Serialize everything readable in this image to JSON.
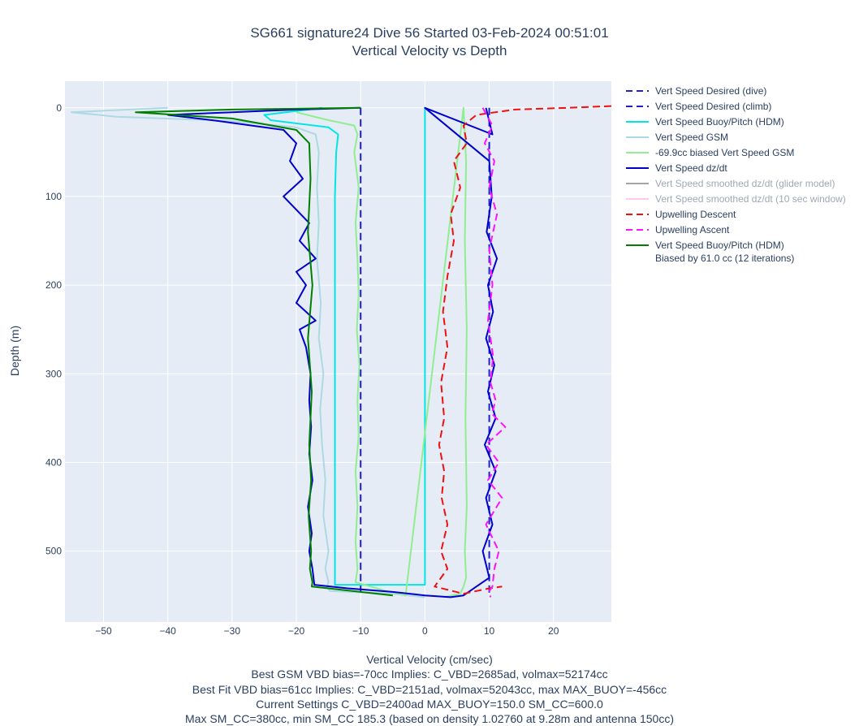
{
  "chart_data": {
    "type": "line",
    "title": "SG661 signature24 Dive 56 Started 03-Feb-2024 00:51:01",
    "subtitle": "Vertical Velocity vs Depth",
    "xlabel": "Vertical Velocity (cm/sec)",
    "ylabel": "Depth (m)",
    "xlim": [
      -56,
      29
    ],
    "ylim": [
      -30,
      580
    ],
    "y_reversed": true,
    "xticks": [
      -50,
      -40,
      -30,
      -20,
      -10,
      0,
      10,
      20
    ],
    "yticks": [
      0,
      100,
      200,
      300,
      400,
      500
    ],
    "grid": true,
    "legend_position": "right",
    "notes": [
      "Best GSM VBD bias=-70cc Implies: C_VBD=2685ad, volmax=52174cc",
      "Best Fit VBD bias=61cc Implies: C_VBD=2151ad, volmax=52043cc, max MAX_BUOY=-456cc",
      "Current Settings C_VBD=2400ad MAX_BUOY=150.0 SM_CC=600.0",
      "Max SM_CC=380cc, min SM_CC 185.3 (based on density 1.02760 at 9.28m and antenna 150cc)"
    ],
    "series": [
      {
        "name": "Vert Speed Desired (dive)",
        "color": "#1f1fcc",
        "dash": "dash",
        "x": [
          -10,
          -10
        ],
        "y": [
          0,
          550
        ]
      },
      {
        "name": "Vert Speed Desired (climb)",
        "color": "#1f1fcc",
        "dash": "dash",
        "x": [
          10,
          10
        ],
        "y": [
          0,
          550
        ]
      },
      {
        "name": "Vert Speed Buoy/Pitch (HDM)",
        "color": "#00e5e5",
        "dash": "solid",
        "x": [
          -16,
          -25,
          -24,
          -15,
          -13.5,
          -13.8,
          -14,
          -14,
          -14,
          -14,
          -14,
          -14,
          0,
          0,
          0
        ],
        "y": [
          0,
          8,
          14,
          22,
          30,
          50,
          100,
          200,
          300,
          400,
          500,
          538,
          538,
          0,
          538
        ]
      },
      {
        "name": "Vert Speed GSM",
        "color": "#add8e6",
        "dash": "solid",
        "x": [
          -40,
          -55,
          -48,
          -30,
          -20,
          -17,
          -16.5,
          -16.8,
          -16.5,
          -16.8,
          -16.2,
          -16.5,
          -15.8,
          -16.3,
          -16,
          -15.5,
          -15.8,
          -15,
          -15.5,
          -15,
          -15.2,
          -14.8,
          -5,
          0
        ],
        "y": [
          0,
          5,
          10,
          15,
          22,
          30,
          50,
          90,
          130,
          170,
          220,
          260,
          300,
          340,
          380,
          420,
          460,
          500,
          520,
          535,
          540,
          545,
          548,
          552
        ]
      },
      {
        "name": "-69.9cc biased Vert Speed GSM",
        "color": "#90ee90",
        "dash": "solid",
        "x": [
          -20,
          -15,
          -11,
          -10.5,
          -11,
          -10.3,
          -10.8,
          -10.5,
          -10.3,
          -10.6,
          -10.2,
          -10.5,
          -10.3,
          -10.8,
          -10.5,
          -10.8,
          -10.5,
          -10.8,
          -6,
          -3,
          6,
          6.4,
          6.2,
          6.5,
          6.3,
          6.5,
          6.2,
          6.4,
          6,
          5.5,
          3
        ],
        "y": [
          5,
          14,
          20,
          30,
          50,
          90,
          130,
          170,
          210,
          250,
          290,
          330,
          370,
          410,
          450,
          490,
          520,
          535,
          545,
          550,
          0,
          60,
          150,
          250,
          350,
          450,
          500,
          530,
          540,
          548,
          552
        ]
      },
      {
        "name": "Vert Speed dz/dt",
        "color": "#0000cd",
        "dash": "solid",
        "x": [
          -10,
          -20,
          -30,
          -40,
          -32,
          -22,
          -20,
          -21,
          -19,
          -22,
          -18,
          -19.5,
          -17,
          -20,
          -18.5,
          -20,
          -17,
          -19.5,
          -18.5,
          -17.8,
          -18,
          -17.7,
          -18,
          -17.5,
          -18.2,
          -17.6,
          -18,
          -17.5,
          -17.2,
          -12,
          -5,
          0,
          4,
          6,
          7,
          8,
          10,
          9,
          10.5,
          9.5,
          11,
          9.3,
          11,
          9.8,
          10.8,
          9.5,
          10.6,
          9.8,
          11.2,
          9.6,
          10.4,
          10,
          0,
          10.5,
          9.5
        ],
        "y": [
          0,
          2,
          5,
          8,
          15,
          25,
          40,
          60,
          80,
          100,
          130,
          150,
          170,
          185,
          200,
          220,
          240,
          250,
          270,
          300,
          330,
          360,
          390,
          420,
          450,
          480,
          500,
          520,
          538,
          542,
          546,
          550,
          552,
          550,
          545,
          540,
          530,
          500,
          470,
          440,
          410,
          380,
          350,
          320,
          290,
          260,
          230,
          200,
          170,
          140,
          100,
          60,
          0,
          30,
          0
        ]
      },
      {
        "name": "Vert Speed smoothed dz/dt (glider model)",
        "color": "#808080",
        "dash": "solid",
        "hidden": true,
        "x": [],
        "y": []
      },
      {
        "name": "Vert Speed smoothed dz/dt (10 sec window)",
        "color": "#ffb6e6",
        "dash": "solid",
        "hidden": true,
        "x": [],
        "y": []
      },
      {
        "name": "Upwelling Descent",
        "color": "#ee1111",
        "dash": "dash",
        "x": [
          29,
          22,
          14,
          8,
          6,
          6.5,
          4.5,
          5.5,
          4,
          4.5,
          3.5,
          2.8,
          3.5,
          2.5,
          3,
          2.2,
          3,
          2.6,
          3.5,
          2.5,
          3.5,
          1.5,
          6,
          10,
          12
        ],
        "y": [
          -2,
          0,
          2,
          8,
          20,
          40,
          60,
          90,
          120,
          150,
          190,
          230,
          270,
          310,
          350,
          380,
          410,
          440,
          470,
          500,
          520,
          540,
          548,
          542,
          540
        ]
      },
      {
        "name": "Upwelling Ascent",
        "color": "#ff11ff",
        "dash": "dash",
        "x": [
          9,
          10.5,
          9.3,
          10.8,
          10,
          11.2,
          10,
          10.5,
          9.8,
          10.6,
          10.2,
          11,
          10.4,
          12.5,
          9.5,
          11.5,
          9.8,
          12,
          9.5,
          11.5,
          10.8,
          10.5,
          10,
          10.2
        ],
        "y": [
          0,
          20,
          40,
          60,
          90,
          120,
          160,
          200,
          240,
          280,
          310,
          330,
          345,
          360,
          380,
          400,
          420,
          440,
          470,
          500,
          520,
          540,
          545,
          552
        ]
      },
      {
        "name": "Vert Speed Buoy/Pitch (HDM)\nBiased by 61.0 cc (12 iterations)",
        "color": "#008000",
        "dash": "solid",
        "x": [
          -10,
          -30,
          -45,
          -30,
          -20,
          -18,
          -17.8,
          -18.2,
          -17.5,
          -18.2,
          -17.6,
          -18,
          -17.7,
          -18.1,
          -17.7,
          -17.9,
          -17.5,
          -17.6,
          -5
        ],
        "y": [
          0,
          2,
          5,
          12,
          25,
          40,
          80,
          140,
          200,
          260,
          320,
          380,
          420,
          460,
          500,
          520,
          535,
          540,
          550
        ]
      }
    ]
  }
}
